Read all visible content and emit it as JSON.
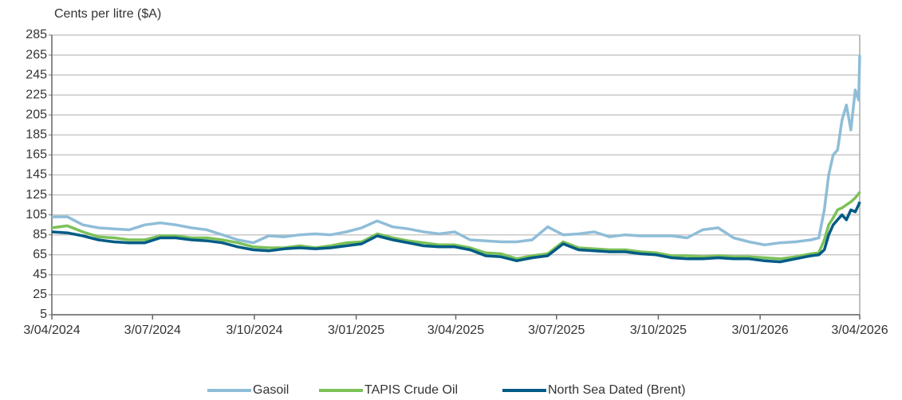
{
  "chart_data": {
    "type": "line",
    "y_label": "Cents per litre ($A)",
    "x": [
      "2024-04-03",
      "2024-04-17",
      "2024-05-01",
      "2024-05-15",
      "2024-05-29",
      "2024-06-12",
      "2024-06-26",
      "2024-07-10",
      "2024-07-24",
      "2024-08-07",
      "2024-08-21",
      "2024-09-04",
      "2024-09-18",
      "2024-10-02",
      "2024-10-16",
      "2024-10-30",
      "2024-11-13",
      "2024-11-27",
      "2024-12-11",
      "2024-12-25",
      "2025-01-08",
      "2025-01-22",
      "2025-02-05",
      "2025-02-19",
      "2025-03-05",
      "2025-03-19",
      "2025-04-02",
      "2025-04-16",
      "2025-04-30",
      "2025-05-14",
      "2025-05-28",
      "2025-06-11",
      "2025-06-25",
      "2025-07-09",
      "2025-07-23",
      "2025-08-06",
      "2025-08-20",
      "2025-09-03",
      "2025-09-17",
      "2025-10-01",
      "2025-10-15",
      "2025-10-29",
      "2025-11-12",
      "2025-11-26",
      "2025-12-10",
      "2025-12-24",
      "2026-01-07",
      "2026-01-21",
      "2026-02-04",
      "2026-02-18",
      "2026-02-25",
      "2026-03-02",
      "2026-03-06",
      "2026-03-10",
      "2026-03-14",
      "2026-03-18",
      "2026-03-22",
      "2026-03-26",
      "2026-03-30",
      "2026-04-02",
      "2026-04-03"
    ],
    "series": [
      {
        "name": "Gasoil",
        "color": "#8fbdd7",
        "values": [
          103,
          103,
          95,
          92,
          91,
          90,
          95,
          97,
          95,
          92,
          90,
          85,
          80,
          77,
          84,
          83,
          85,
          86,
          85,
          88,
          92,
          99,
          93,
          91,
          88,
          86,
          88,
          80,
          79,
          78,
          78,
          80,
          93,
          85,
          86,
          88,
          83,
          85,
          84,
          84,
          84,
          82,
          90,
          92,
          82,
          78,
          75,
          77,
          78,
          80,
          82,
          110,
          145,
          165,
          170,
          200,
          215,
          190,
          230,
          220,
          265
        ]
      },
      {
        "name": "TAPIS Crude Oil",
        "color": "#7cc158",
        "values": [
          92,
          94,
          88,
          83,
          82,
          80,
          80,
          84,
          84,
          82,
          82,
          80,
          77,
          73,
          72,
          72,
          74,
          72,
          74,
          77,
          78,
          86,
          82,
          79,
          77,
          75,
          75,
          72,
          67,
          66,
          61,
          64,
          66,
          78,
          72,
          71,
          70,
          70,
          68,
          67,
          64,
          64,
          63,
          64,
          63,
          63,
          62,
          61,
          63,
          66,
          67,
          80,
          95,
          102,
          110,
          112,
          115,
          118,
          122,
          126,
          128
        ]
      },
      {
        "name": "North Sea Dated (Brent)",
        "color": "#005b85",
        "values": [
          88,
          87,
          84,
          80,
          78,
          77,
          77,
          82,
          82,
          80,
          79,
          77,
          73,
          70,
          69,
          71,
          72,
          71,
          72,
          74,
          76,
          84,
          80,
          77,
          74,
          73,
          73,
          70,
          64,
          63,
          59,
          62,
          64,
          76,
          70,
          69,
          68,
          68,
          66,
          65,
          62,
          61,
          61,
          62,
          61,
          61,
          59,
          58,
          61,
          64,
          65,
          70,
          85,
          95,
          100,
          105,
          100,
          110,
          108,
          115,
          118
        ]
      }
    ],
    "xlim": [
      "2024-04-03",
      "2026-04-03"
    ],
    "xticks": [
      {
        "value": "2024-04-03",
        "label": "3/04/2024"
      },
      {
        "value": "2024-07-03",
        "label": "3/07/2024"
      },
      {
        "value": "2024-10-03",
        "label": "3/10/2024"
      },
      {
        "value": "2025-01-03",
        "label": "3/01/2025"
      },
      {
        "value": "2025-04-03",
        "label": "3/04/2025"
      },
      {
        "value": "2025-07-03",
        "label": "3/07/2025"
      },
      {
        "value": "2025-10-03",
        "label": "3/10/2025"
      },
      {
        "value": "2026-01-03",
        "label": "3/01/2026"
      },
      {
        "value": "2026-04-03",
        "label": "3/04/2026"
      }
    ],
    "ylim": [
      5,
      285
    ],
    "yticks": [
      5,
      25,
      45,
      65,
      85,
      105,
      125,
      145,
      165,
      185,
      205,
      225,
      245,
      265,
      285
    ],
    "grid": true,
    "legend": "bottom"
  }
}
